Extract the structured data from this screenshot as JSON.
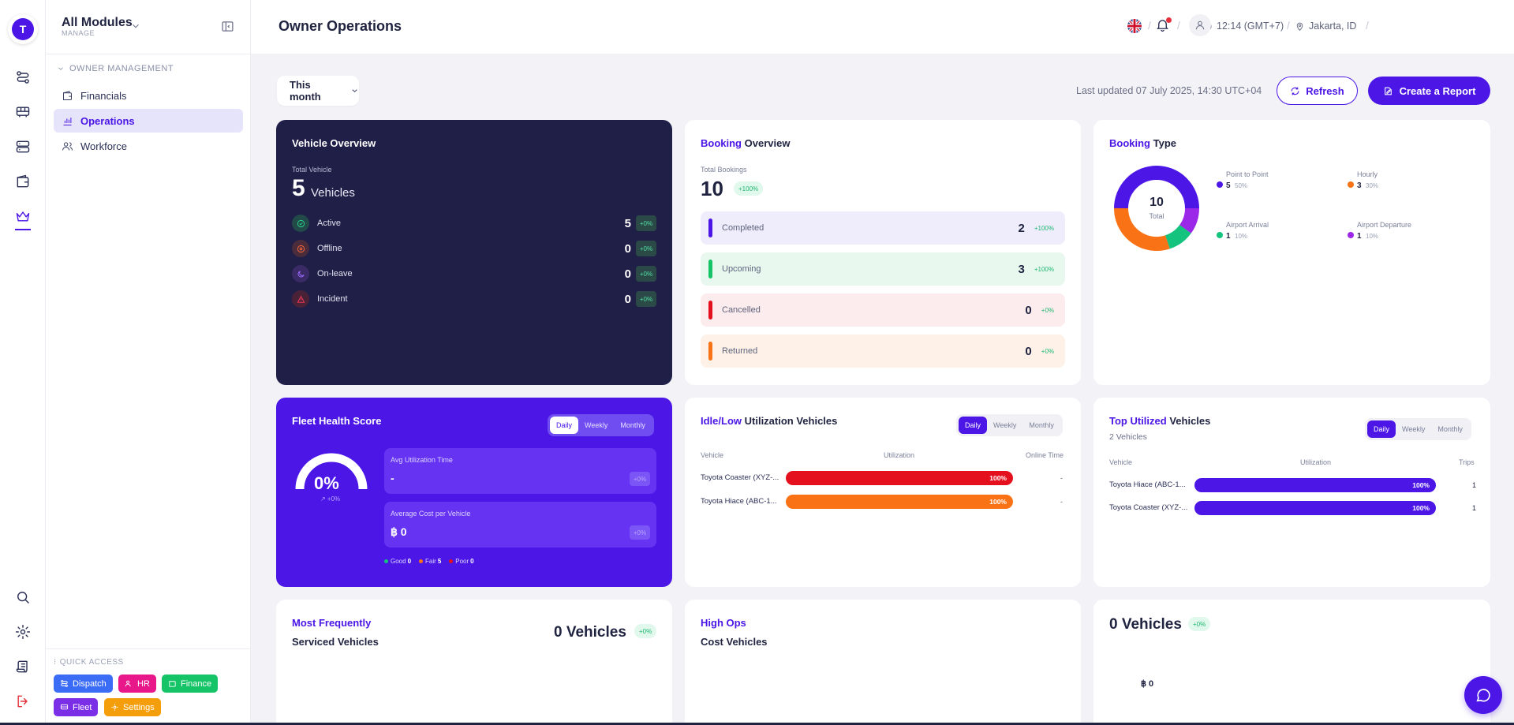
{
  "app": {
    "logo_letter": "T"
  },
  "module": {
    "title": "All Modules",
    "subtitle": "MANAGE"
  },
  "sidebar": {
    "group_label": "OWNER MANAGEMENT",
    "items": [
      {
        "label": "Financials",
        "icon": "wallet-icon"
      },
      {
        "label": "Operations",
        "icon": "bar-chart-icon",
        "active": true
      },
      {
        "label": "Workforce",
        "icon": "users-icon"
      }
    ],
    "quick_access_label": "QUICK ACCESS",
    "quick_access": [
      {
        "label": "Dispatch",
        "color": "#3b6cf6"
      },
      {
        "label": "HR",
        "color": "#e8178a"
      },
      {
        "label": "Finance",
        "color": "#14c466"
      },
      {
        "label": "Fleet",
        "color": "#7a2ee6"
      },
      {
        "label": "Settings",
        "color": "#f59e0b"
      }
    ]
  },
  "header": {
    "title": "Owner Operations",
    "time": "12:14 (GMT+7)",
    "location": "Jakarta, ID",
    "separator": "/"
  },
  "toolbar": {
    "period": "This month",
    "last_updated": "Last updated 07 July 2025, 14:30 UTC+04",
    "refresh_label": "Refresh",
    "report_label": "Create a Report"
  },
  "vehicle_overview": {
    "title": "Vehicle Overview",
    "total_label": "Total Vehicle",
    "total_value": "5",
    "total_unit": "Vehicles",
    "rows": [
      {
        "label": "Active",
        "value": "5",
        "change": "+0%"
      },
      {
        "label": "Offline",
        "value": "0",
        "change": "+0%"
      },
      {
        "label": "On-leave",
        "value": "0",
        "change": "+0%"
      },
      {
        "label": "Incident",
        "value": "0",
        "change": "+0%"
      }
    ]
  },
  "booking_overview": {
    "title_hl": "Booking",
    "title_rest": "Overview",
    "total_label": "Total Bookings",
    "total_value": "10",
    "total_change": "+100%",
    "rows": [
      {
        "label": "Completed",
        "value": "2",
        "change": "+100%",
        "color": "#4b16e6",
        "bg": "#efedfc"
      },
      {
        "label": "Upcoming",
        "value": "3",
        "change": "+100%",
        "color": "#14c466",
        "bg": "#e8f8ef"
      },
      {
        "label": "Cancelled",
        "value": "0",
        "change": "+0%",
        "color": "#e5101d",
        "bg": "#fdeced"
      },
      {
        "label": "Returned",
        "value": "0",
        "change": "+0%",
        "color": "#f97316",
        "bg": "#fef1e8"
      }
    ]
  },
  "booking_type": {
    "title_hl": "Booking",
    "title_rest": "Type",
    "center_value": "10",
    "center_label": "Total",
    "legend": [
      {
        "name": "Point to Point",
        "value": "5",
        "pct": "50%",
        "color": "#4b16e6"
      },
      {
        "name": "Hourly",
        "value": "3",
        "pct": "30%",
        "color": "#f97316"
      },
      {
        "name": "Airport Arrival",
        "value": "1",
        "pct": "10%",
        "color": "#14c47e"
      },
      {
        "name": "Airport Departure",
        "value": "1",
        "pct": "10%",
        "color": "#9b27e8"
      }
    ]
  },
  "fleet_health": {
    "title": "Fleet Health Score",
    "tabs": [
      "Daily",
      "Weekly",
      "Monthly"
    ],
    "score": "0%",
    "score_change": "↗ +0%",
    "metrics": [
      {
        "label": "Avg Utilization Time",
        "value": "-",
        "change": "+0%"
      },
      {
        "label": "Average Cost per Vehicle",
        "value": "฿ 0",
        "change": "+0%"
      }
    ],
    "legend": [
      {
        "label": "Good",
        "value": "0",
        "color": "#14c47e"
      },
      {
        "label": "Fair",
        "value": "5",
        "color": "#f97316"
      },
      {
        "label": "Poor",
        "value": "0",
        "color": "#e5101d"
      }
    ]
  },
  "idle_util": {
    "title_hl": "Idle/Low",
    "title_rest": "Utilization Vehicles",
    "tabs": [
      "Daily",
      "Weekly",
      "Monthly"
    ],
    "columns": [
      "Vehicle",
      "Utilization",
      "Online Time"
    ],
    "rows": [
      {
        "vehicle": "Toyota Coaster (XYZ-...",
        "utilization": 1.0,
        "label": "100%",
        "online": "-",
        "color": "#e5101d"
      },
      {
        "vehicle": "Toyota Hiace (ABC-1...",
        "utilization": 1.0,
        "label": "100%",
        "online": "-",
        "color": "#f97316"
      }
    ]
  },
  "top_util": {
    "title_hl": "Top Utilized",
    "title_rest": "Vehicles",
    "subtitle": "2 Vehicles",
    "tabs": [
      "Daily",
      "Weekly",
      "Monthly"
    ],
    "columns": [
      "Vehicle",
      "Utilization",
      "Trips"
    ],
    "rows": [
      {
        "vehicle": "Toyota Hiace (ABC-1...",
        "utilization": 1.0,
        "label": "100%",
        "trips": "1",
        "color": "#4b16e6"
      },
      {
        "vehicle": "Toyota Coaster (XYZ-...",
        "utilization": 1.0,
        "label": "100%",
        "trips": "1",
        "color": "#4b16e6"
      }
    ]
  },
  "most_serviced": {
    "title_hl": "Most Frequently",
    "title_rest": "Serviced Vehicles",
    "value": "0 Vehicles",
    "change": "+0%"
  },
  "high_ops": {
    "title_hl": "High Ops",
    "title_rest": "Cost Vehicles"
  },
  "vehicles_card": {
    "value": "0 Vehicles",
    "change": "+0%",
    "amount": "฿ 0"
  }
}
